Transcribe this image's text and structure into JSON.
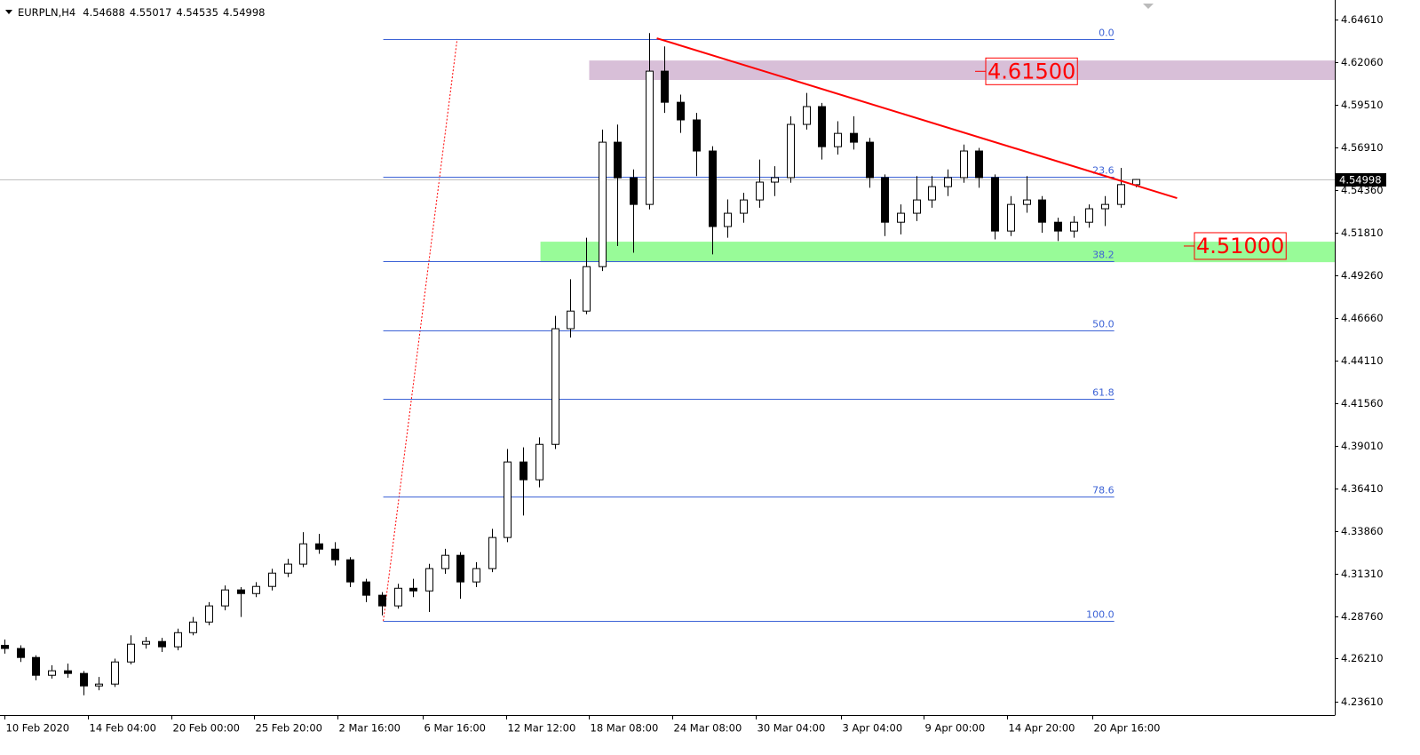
{
  "chart_data": {
    "type": "candlestick",
    "symbol": "EURPLN,H4",
    "ohlc": [
      [
        4.27,
        4.2735,
        4.265,
        4.2681
      ],
      [
        4.2681,
        4.27,
        4.26,
        4.2627
      ],
      [
        4.2627,
        4.264,
        4.249,
        4.252
      ],
      [
        4.252,
        4.258,
        4.25,
        4.2547
      ],
      [
        4.2547,
        4.259,
        4.2505,
        4.2531
      ],
      [
        4.2531,
        4.2545,
        4.24,
        4.2456
      ],
      [
        4.2456,
        4.251,
        4.243,
        4.2467
      ],
      [
        4.2467,
        4.262,
        4.245,
        4.26
      ],
      [
        4.26,
        4.276,
        4.2585,
        4.2707
      ],
      [
        4.2707,
        4.275,
        4.268,
        4.2723
      ],
      [
        4.2723,
        4.2745,
        4.266,
        4.2691
      ],
      [
        4.2691,
        4.28,
        4.267,
        4.2776
      ],
      [
        4.2776,
        4.287,
        4.276,
        4.284
      ],
      [
        4.284,
        4.296,
        4.282,
        4.2937
      ],
      [
        4.2937,
        4.306,
        4.291,
        4.3033
      ],
      [
        4.3033,
        4.305,
        4.287,
        4.3011
      ],
      [
        4.3011,
        4.308,
        4.299,
        4.3054
      ],
      [
        4.3054,
        4.316,
        4.303,
        4.3134
      ],
      [
        4.3134,
        4.322,
        4.311,
        4.3188
      ],
      [
        4.3188,
        4.338,
        4.317,
        4.331
      ],
      [
        4.331,
        4.337,
        4.325,
        4.3278
      ],
      [
        4.3278,
        4.332,
        4.318,
        4.3214
      ],
      [
        4.3214,
        4.323,
        4.305,
        4.3081
      ],
      [
        4.3081,
        4.31,
        4.296,
        4.3001
      ],
      [
        4.3001,
        4.302,
        4.288,
        4.2937
      ],
      [
        4.2937,
        4.307,
        4.292,
        4.3043
      ],
      [
        4.3043,
        4.31,
        4.299,
        4.3027
      ],
      [
        4.3027,
        4.319,
        4.29,
        4.3161
      ],
      [
        4.3161,
        4.328,
        4.313,
        4.3241
      ],
      [
        4.3241,
        4.326,
        4.298,
        4.3081
      ],
      [
        4.3081,
        4.32,
        4.305,
        4.3161
      ],
      [
        4.3161,
        4.34,
        4.314,
        4.3348
      ],
      [
        4.3348,
        4.388,
        4.332,
        4.3802
      ],
      [
        4.3802,
        4.389,
        4.348,
        4.3695
      ],
      [
        4.3695,
        4.395,
        4.365,
        4.3908
      ],
      [
        4.3908,
        4.468,
        4.388,
        4.4603
      ],
      [
        4.4603,
        4.49,
        4.455,
        4.4709
      ],
      [
        4.4709,
        4.515,
        4.469,
        4.4976
      ],
      [
        4.4976,
        4.58,
        4.495,
        4.5724
      ],
      [
        4.5724,
        4.583,
        4.51,
        4.551
      ],
      [
        4.551,
        4.556,
        4.506,
        4.535
      ],
      [
        4.535,
        4.638,
        4.532,
        4.6151
      ],
      [
        4.6151,
        4.63,
        4.59,
        4.5964
      ],
      [
        4.5964,
        4.601,
        4.578,
        4.5858
      ],
      [
        4.5858,
        4.59,
        4.552,
        4.5671
      ],
      [
        4.5671,
        4.57,
        4.505,
        4.5217
      ],
      [
        4.5217,
        4.538,
        4.515,
        4.5297
      ],
      [
        4.5297,
        4.542,
        4.524,
        4.5377
      ],
      [
        4.5377,
        4.562,
        4.533,
        4.5484
      ],
      [
        4.5484,
        4.558,
        4.54,
        4.5511
      ],
      [
        4.5511,
        4.588,
        4.548,
        4.5831
      ],
      [
        4.5831,
        4.602,
        4.58,
        4.5938
      ],
      [
        4.5938,
        4.596,
        4.562,
        4.5697
      ],
      [
        4.5697,
        4.585,
        4.565,
        4.5777
      ],
      [
        4.5777,
        4.588,
        4.568,
        4.5724
      ],
      [
        4.5724,
        4.575,
        4.545,
        4.5511
      ],
      [
        4.5511,
        4.553,
        4.516,
        4.5243
      ],
      [
        4.5243,
        4.535,
        4.517,
        4.5297
      ],
      [
        4.5297,
        4.552,
        4.525,
        4.5377
      ],
      [
        4.5377,
        4.552,
        4.533,
        4.5457
      ],
      [
        4.5457,
        4.556,
        4.54,
        4.5511
      ],
      [
        4.5511,
        4.571,
        4.548,
        4.5671
      ],
      [
        4.5671,
        4.569,
        4.545,
        4.5511
      ],
      [
        4.5511,
        4.553,
        4.514,
        4.519
      ],
      [
        4.519,
        4.54,
        4.516,
        4.535
      ],
      [
        4.535,
        4.552,
        4.53,
        4.5377
      ],
      [
        4.5377,
        4.54,
        4.518,
        4.5243
      ],
      [
        4.5243,
        4.527,
        4.513,
        4.519
      ],
      [
        4.519,
        4.528,
        4.515,
        4.5243
      ],
      [
        4.5243,
        4.535,
        4.521,
        4.5324
      ],
      [
        4.5324,
        4.54,
        4.522,
        4.535
      ],
      [
        4.535,
        4.557,
        4.533,
        4.5469
      ],
      [
        4.54688,
        4.55017,
        4.54535,
        4.54998
      ]
    ],
    "ylim": [
      4.2281,
      4.6552
    ],
    "yticks": [
      {
        "value": 4.6461,
        "label": "4.64610"
      },
      {
        "value": 4.6206,
        "label": "4.62060"
      },
      {
        "value": 4.5951,
        "label": "4.59510"
      },
      {
        "value": 4.5691,
        "label": "4.56910"
      },
      {
        "value": 4.5436,
        "label": "4.54360"
      },
      {
        "value": 4.5181,
        "label": "4.51810"
      },
      {
        "value": 4.4926,
        "label": "4.49260"
      },
      {
        "value": 4.4666,
        "label": "4.46660"
      },
      {
        "value": 4.4411,
        "label": "4.44110"
      },
      {
        "value": 4.4156,
        "label": "4.41560"
      },
      {
        "value": 4.3901,
        "label": "4.39010"
      },
      {
        "value": 4.3641,
        "label": "4.36410"
      },
      {
        "value": 4.3386,
        "label": "4.33860"
      },
      {
        "value": 4.3131,
        "label": "4.31310"
      },
      {
        "value": 4.2876,
        "label": "4.28760"
      },
      {
        "value": 4.2621,
        "label": "4.26210"
      },
      {
        "value": 4.2361,
        "label": "4.23610"
      }
    ],
    "xlim": [
      -0.2825,
      84.63
    ],
    "xticks": [
      {
        "value": 0,
        "label": "10 Feb 2020"
      },
      {
        "value": 5.3,
        "label": "14 Feb 04:00"
      },
      {
        "value": 10.6,
        "label": "20 Feb 00:00"
      },
      {
        "value": 15.9,
        "label": "25 Feb 20:00"
      },
      {
        "value": 21.2,
        "label": "2 Mar 16:00"
      },
      {
        "value": 26.6,
        "label": "6 Mar 16:00"
      },
      {
        "value": 31.9,
        "label": "12 Mar 12:00"
      },
      {
        "value": 37.2,
        "label": "18 Mar 08:00"
      },
      {
        "value": 42.5,
        "label": "24 Mar 08:00"
      },
      {
        "value": 47.8,
        "label": "30 Mar 04:00"
      },
      {
        "value": 53.2,
        "label": "3 Apr 04:00"
      },
      {
        "value": 58.5,
        "label": "9 Apr 00:00"
      },
      {
        "value": 63.8,
        "label": "14 Apr 20:00"
      },
      {
        "value": 69.2,
        "label": "20 Apr 16:00"
      }
    ],
    "fibonacci": {
      "high": 4.6344,
      "low": 4.2846,
      "anchor_x": [
        24.1,
        28.8
      ],
      "x": [
        24.1,
        70.6
      ],
      "color": "#3d63d6",
      "levels": [
        {
          "value": 0,
          "label": "0.0"
        },
        23.6,
        38.2,
        {
          "value": 50,
          "label": "50.0"
        },
        61.8,
        78.6,
        {
          "value": 100,
          "label": "100.0"
        }
      ]
    },
    "zones": [
      {
        "low": 4.6098,
        "high": 4.6215,
        "x": 37.2,
        "color": "#d8bfd8",
        "label": {
          "value": 4.615,
          "label": "4.61500"
        }
      },
      {
        "low": 4.5003,
        "high": 4.5126,
        "x": 34.1,
        "color": "#98fb98",
        "label": {
          "value": 4.51,
          "label": "4.51000"
        }
      }
    ],
    "trendline": {
      "x": [
        41.5,
        74.6
      ],
      "y": [
        4.6349,
        4.5388
      ],
      "color": "#ff0000"
    }
  }
}
